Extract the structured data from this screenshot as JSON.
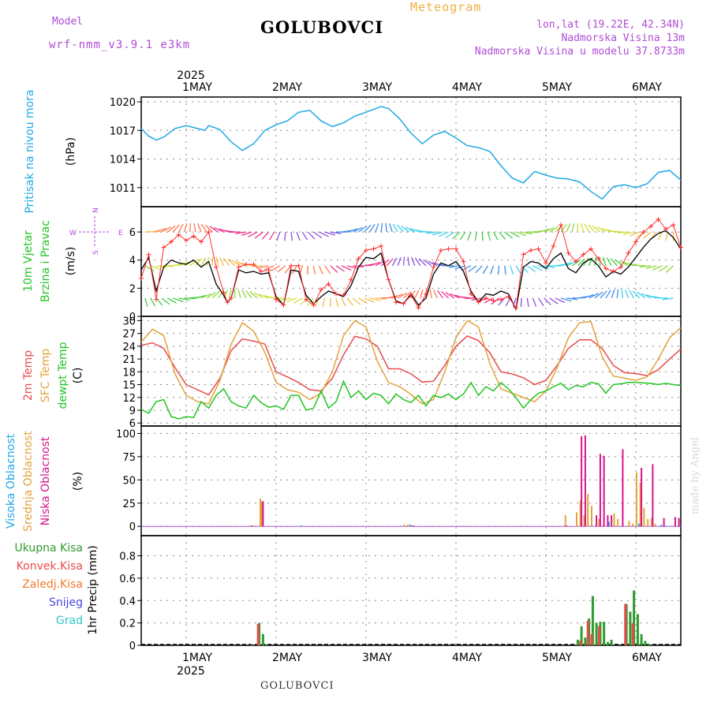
{
  "header": {
    "model_label": "Model",
    "model_name": "wrf-nmm_v3.9.1 e3km",
    "station": "GOLUBOVCI",
    "meteogram": "Meteogram",
    "lonlat": "lon,lat (19.22E, 42.34N)",
    "elevation": "Nadmorska Visina 13m",
    "model_elevation": "Nadmorska Visina u modelu 37.8733m",
    "footer_station": "GOLUBOVCI",
    "credit": "made by Angel"
  },
  "colors": {
    "pressure": "#1ea9e6",
    "wind_speed": "#000000",
    "wind_gust": "#ff3030",
    "temp2m": "#e84b4b",
    "sfc_temp": "#e3a33c",
    "dewpoint": "#22c422",
    "high_cloud": "#1ea9e6",
    "mid_cloud": "#e3a33c",
    "low_cloud": "#d6158a",
    "total_rain": "#2e9c2e",
    "conv_rain": "#e84b4b",
    "frozen_rain": "#f07830",
    "snow": "#4646e6",
    "graupel": "#2ec8c8"
  },
  "chart_data": [
    {
      "type": "line",
      "panel": "pressure",
      "labels": [
        "Pritisak na nivou mora",
        "(hPa)"
      ],
      "x_axis": {
        "top_year": "2025",
        "bottom_year": "2025",
        "ticks": [
          "1MAY",
          "2MAY",
          "3MAY",
          "4MAY",
          "5MAY",
          "6MAY"
        ],
        "range_hours": [
          -12,
          132
        ]
      },
      "ylim": [
        1009,
        1020.5
      ],
      "yticks": [
        1011,
        1014,
        1017,
        1020
      ],
      "series": [
        {
          "name": "Sea level pressure",
          "x": [
            -12,
            -10,
            -8,
            -6,
            -3,
            0,
            3,
            5,
            6,
            9,
            12,
            15,
            18,
            21,
            24,
            27,
            30,
            33,
            36,
            39,
            42,
            45,
            48,
            50,
            52,
            54,
            57,
            60,
            63,
            66,
            69,
            72,
            75,
            78,
            81,
            84,
            87,
            90,
            93,
            96,
            99,
            102,
            105,
            108,
            111,
            114,
            117,
            120,
            123,
            126,
            129,
            132
          ],
          "values": [
            1017.2,
            1016.4,
            1016.0,
            1016.3,
            1017.2,
            1017.5,
            1017.2,
            1017.0,
            1017.5,
            1017.1,
            1015.8,
            1014.9,
            1015.6,
            1017.0,
            1017.6,
            1018.0,
            1018.9,
            1019.1,
            1018.0,
            1017.4,
            1017.8,
            1018.5,
            1018.9,
            1019.2,
            1019.5,
            1019.3,
            1018.2,
            1016.7,
            1015.6,
            1016.5,
            1016.9,
            1016.2,
            1015.4,
            1015.2,
            1014.8,
            1013.3,
            1012.0,
            1011.5,
            1012.7,
            1012.3,
            1012.0,
            1011.9,
            1011.6,
            1010.6,
            1009.8,
            1011.1,
            1011.3,
            1011.0,
            1011.4,
            1012.6,
            1012.8,
            1011.8
          ]
        }
      ]
    },
    {
      "type": "line",
      "panel": "wind",
      "labels": [
        "10m Vjetar",
        "Brzina i Pravac",
        "(m/s)"
      ],
      "compass": {
        "n": "N",
        "s": "S",
        "w": "W",
        "e": "E"
      },
      "ylim": [
        0,
        7.8
      ],
      "yticks": [
        0,
        2,
        4,
        6
      ],
      "series": [
        {
          "name": "Wind speed",
          "x": [
            -12,
            -10,
            -8,
            -6,
            -4,
            -2,
            0,
            2,
            4,
            6,
            8,
            10,
            11,
            12,
            14,
            16,
            18,
            20,
            22,
            24,
            26,
            28,
            30,
            32,
            34,
            36,
            38,
            40,
            42,
            44,
            46,
            48,
            50,
            52,
            54,
            56,
            58,
            60,
            62,
            64,
            66,
            68,
            70,
            72,
            74,
            76,
            78,
            80,
            82,
            84,
            86,
            88,
            90,
            92,
            94,
            96,
            98,
            100,
            102,
            104,
            106,
            108,
            110,
            112,
            114,
            116,
            118,
            120,
            122,
            124,
            126,
            128,
            130,
            132
          ],
          "values": [
            3.3,
            4.2,
            1.8,
            3.5,
            4.0,
            3.8,
            3.7,
            4.0,
            3.5,
            3.9,
            2.3,
            1.5,
            1.0,
            1.3,
            3.3,
            3.1,
            3.2,
            3.0,
            3.1,
            1.4,
            0.8,
            3.3,
            3.2,
            1.5,
            0.9,
            1.4,
            1.8,
            1.6,
            1.4,
            2.2,
            3.5,
            4.2,
            4.1,
            4.5,
            2.6,
            1.1,
            0.9,
            1.6,
            0.8,
            1.3,
            3.0,
            3.8,
            3.6,
            3.9,
            3.2,
            1.8,
            1.0,
            1.6,
            1.5,
            1.8,
            1.6,
            0.5,
            3.5,
            3.9,
            3.8,
            3.4,
            4.1,
            4.5,
            3.4,
            3.1,
            3.8,
            4.1,
            3.6,
            2.8,
            3.2,
            3.0,
            3.5,
            4.2,
            4.9,
            5.5,
            5.9,
            6.1,
            5.6,
            4.8
          ]
        },
        {
          "name": "Wind gust",
          "x": [
            -12,
            -10,
            -8,
            -6,
            -4,
            -2,
            0,
            2,
            4,
            6,
            8,
            10,
            11,
            12,
            14,
            16,
            18,
            20,
            22,
            24,
            26,
            28,
            30,
            32,
            34,
            36,
            38,
            40,
            42,
            44,
            46,
            48,
            50,
            52,
            54,
            56,
            58,
            60,
            62,
            64,
            66,
            68,
            70,
            72,
            74,
            76,
            78,
            80,
            82,
            84,
            86,
            88,
            90,
            92,
            94,
            96,
            98,
            100,
            102,
            104,
            106,
            108,
            110,
            112,
            114,
            116,
            118,
            120,
            122,
            124,
            126,
            128,
            130,
            132
          ],
          "values": [
            2.7,
            4.4,
            1.2,
            4.9,
            5.3,
            5.8,
            5.4,
            5.7,
            5.3,
            6.0,
            3.5,
            1.7,
            1.0,
            1.3,
            3.5,
            3.7,
            3.7,
            3.2,
            3.3,
            1.2,
            0.8,
            3.6,
            3.6,
            1.2,
            0.8,
            1.9,
            2.3,
            1.6,
            1.5,
            2.6,
            4.1,
            4.7,
            4.8,
            5.0,
            2.6,
            1.0,
            0.9,
            1.5,
            0.6,
            1.6,
            3.5,
            4.7,
            4.8,
            4.8,
            3.9,
            1.6,
            1.0,
            1.3,
            1.1,
            1.2,
            1.4,
            0.6,
            4.4,
            4.7,
            4.8,
            3.8,
            5.0,
            6.5,
            4.5,
            3.9,
            4.4,
            4.8,
            4.1,
            3.4,
            3.2,
            3.5,
            4.5,
            5.3,
            6.0,
            6.4,
            6.9,
            6.2,
            6.5,
            4.9
          ]
        }
      ]
    },
    {
      "type": "line",
      "panel": "temperature",
      "labels": [
        "2m Temp",
        "SFC Temp",
        "dewpt Temp",
        "(C)"
      ],
      "ylim": [
        5.3,
        31
      ],
      "yticks": [
        6,
        9,
        12,
        15,
        18,
        21,
        24,
        27,
        30
      ],
      "series": [
        {
          "name": "2m Temp",
          "x": [
            -12,
            -9,
            -6,
            -3,
            0,
            3,
            6,
            9,
            12,
            15,
            18,
            21,
            24,
            27,
            30,
            33,
            36,
            39,
            42,
            45,
            48,
            51,
            54,
            57,
            60,
            63,
            66,
            69,
            72,
            75,
            78,
            81,
            84,
            87,
            90,
            93,
            96,
            99,
            102,
            105,
            108,
            111,
            114,
            117,
            120,
            123,
            126,
            129,
            132
          ],
          "values": [
            24.2,
            24.8,
            23.5,
            19.0,
            15.0,
            13.8,
            12.6,
            16.5,
            23.0,
            25.7,
            25.2,
            24.5,
            18.0,
            16.8,
            15.5,
            13.8,
            13.5,
            16.5,
            22.0,
            26.3,
            25.7,
            24.0,
            18.7,
            18.7,
            17.5,
            15.6,
            15.8,
            19.5,
            24.0,
            26.4,
            25.3,
            22.5,
            18.0,
            17.5,
            16.6,
            15.0,
            16.0,
            19.5,
            23.5,
            25.5,
            25.5,
            23.5,
            19.5,
            17.8,
            17.6,
            17.1,
            18.5,
            21.0,
            23.3
          ]
        },
        {
          "name": "SFC Temp",
          "x": [
            -12,
            -9,
            -6,
            -3,
            0,
            3,
            6,
            9,
            12,
            15,
            18,
            21,
            24,
            27,
            30,
            33,
            36,
            39,
            42,
            45,
            48,
            51,
            54,
            57,
            60,
            63,
            66,
            69,
            72,
            75,
            78,
            81,
            84,
            87,
            90,
            93,
            96,
            99,
            102,
            105,
            108,
            111,
            114,
            117,
            120,
            123,
            126,
            129,
            132
          ],
          "values": [
            25.0,
            28.0,
            26.5,
            17.5,
            12.5,
            11.0,
            10.5,
            16.0,
            24.5,
            29.5,
            27.5,
            22.5,
            15.5,
            13.8,
            13.2,
            11.5,
            13.0,
            18.0,
            26.5,
            30.0,
            28.5,
            20.5,
            15.5,
            14.5,
            12.7,
            10.5,
            11.5,
            18.0,
            26.0,
            30.0,
            28.5,
            20.0,
            14.0,
            13.0,
            12.0,
            11.0,
            13.5,
            19.0,
            26.0,
            29.5,
            29.8,
            21.5,
            17.0,
            16.5,
            16.0,
            16.8,
            21.0,
            26.0,
            28.3
          ]
        },
        {
          "name": "Dewpoint Temp",
          "x": [
            -12,
            -10,
            -8,
            -6,
            -4,
            -2,
            0,
            2,
            4,
            6,
            8,
            10,
            12,
            14,
            16,
            18,
            20,
            22,
            24,
            26,
            28,
            30,
            32,
            34,
            36,
            38,
            40,
            42,
            44,
            46,
            48,
            50,
            52,
            54,
            56,
            58,
            60,
            62,
            64,
            66,
            68,
            70,
            72,
            74,
            76,
            78,
            80,
            82,
            84,
            86,
            88,
            90,
            92,
            94,
            96,
            98,
            100,
            102,
            104,
            106,
            108,
            110,
            112,
            114,
            116,
            118,
            120,
            122,
            124,
            126,
            128,
            130,
            132
          ],
          "values": [
            9.2,
            8.3,
            11.0,
            11.5,
            7.5,
            7.0,
            7.5,
            7.3,
            11.0,
            9.5,
            12.5,
            14.0,
            11.0,
            10.0,
            9.5,
            12.5,
            10.8,
            9.7,
            10.0,
            9.2,
            12.5,
            12.5,
            9.0,
            9.5,
            13.5,
            9.5,
            11.0,
            15.8,
            12.0,
            13.5,
            11.5,
            13.0,
            12.5,
            10.5,
            12.8,
            11.5,
            10.8,
            12.5,
            10.0,
            12.5,
            12.0,
            12.8,
            11.5,
            12.8,
            15.5,
            12.5,
            14.5,
            13.5,
            15.5,
            14.0,
            12.0,
            9.5,
            11.5,
            13.0,
            13.5,
            14.5,
            15.3,
            13.8,
            14.8,
            14.5,
            15.5,
            15.2,
            13.0,
            15.0,
            15.2,
            15.5,
            15.5,
            15.4,
            15.3,
            15.0,
            15.3,
            15.0,
            14.8
          ]
        }
      ]
    },
    {
      "type": "bar",
      "panel": "cloud",
      "labels": [
        "Visoka Oblacnost",
        "Srednja Oblacnost",
        "Niska Oblacnost",
        "(%)"
      ],
      "ylim": [
        -10,
        108
      ],
      "yticks": [
        0,
        25,
        50,
        75,
        100
      ],
      "series": [
        {
          "name": "Visoka Oblacnost",
          "x": [
            30.8,
            59.8,
            112.8,
            120.8,
            126.8
          ],
          "values": [
            1,
            2,
            5,
            3,
            2
          ]
        },
        {
          "name": "Srednja Oblacnost",
          "x": [
            18.2,
            19.8,
            20.2,
            58.2,
            59.2,
            101.2,
            104.2,
            105.2,
            106.2,
            107.2,
            108.2,
            110.2,
            114.2,
            115.2,
            118.2,
            119.2,
            120.2,
            121.2,
            122.2,
            123.2,
            124.2,
            125.2
          ],
          "values": [
            1,
            30,
            27,
            2,
            2,
            12,
            15,
            28,
            12,
            35,
            22,
            8,
            14,
            8,
            6,
            3,
            58,
            47,
            20,
            8,
            9,
            3
          ]
        },
        {
          "name": "Niska Oblacnost",
          "x": [
            17.5,
            20.5,
            60.5,
            101.5,
            105.5,
            106.5,
            109.5,
            110.5,
            111.5,
            112.5,
            113.5,
            116.5,
            121.5,
            124.5,
            127.5,
            130.5,
            131.5
          ],
          "values": [
            1,
            27,
            1,
            1,
            97,
            98,
            12,
            78,
            76,
            12,
            12,
            83,
            63,
            67,
            9,
            10,
            9
          ]
        }
      ]
    },
    {
      "type": "bar",
      "panel": "precipitation",
      "labels": [
        "Ukupna Kisa",
        "Konvek.Kisa",
        "Zaledj.Kisa",
        "Snijeg",
        "Grad",
        "1hr Precip (mm)"
      ],
      "ylim": [
        0,
        0.98
      ],
      "yticks": [
        0,
        0.2,
        0.4,
        0.6,
        0.8
      ],
      "series": [
        {
          "name": "Ukupna Kisa",
          "x": [
            17.5,
            19.5,
            20.5,
            21.5,
            104.5,
            105.5,
            106.5,
            107.5,
            108.5,
            109.5,
            110.5,
            111.5,
            112.5,
            113.5,
            117.5,
            118.5,
            119.5,
            120.5,
            121.5,
            122.5,
            123.5
          ],
          "values": [
            0.01,
            0.2,
            0.1,
            0.01,
            0.05,
            0.17,
            0.07,
            0.24,
            0.44,
            0.2,
            0.21,
            0.21,
            0.03,
            0.05,
            0.37,
            0.3,
            0.49,
            0.28,
            0.1,
            0.04,
            0.01
          ]
        },
        {
          "name": "Konvek.Kisa",
          "x": [
            19.2,
            105.2,
            107.2,
            108.2,
            110.2,
            117.2,
            119.2
          ],
          "values": [
            0.19,
            0.04,
            0.22,
            0.1,
            0.17,
            0.37,
            0.2
          ]
        }
      ],
      "x_ticks_bottom": [
        "1MAY",
        "2MAY",
        "3MAY",
        "4MAY",
        "5MAY",
        "6MAY"
      ]
    }
  ]
}
